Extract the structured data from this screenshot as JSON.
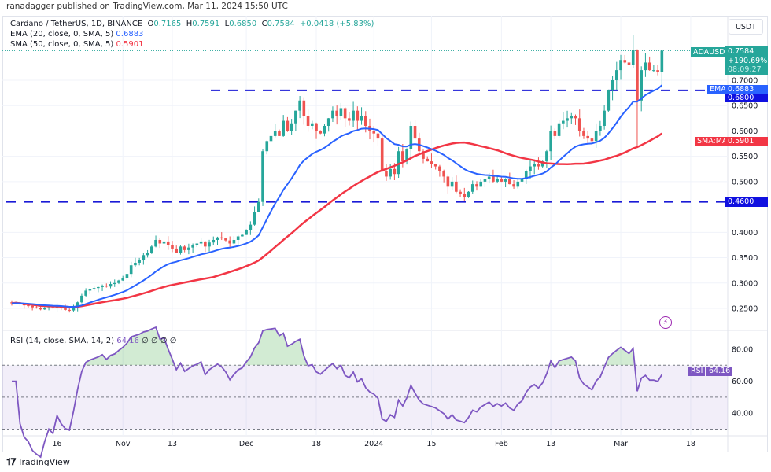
{
  "published": "ranadagger published on TradingView.com, Mar 11, 2024 15:50 UTC",
  "legend": {
    "symbol": "Cardano / TetherUS, 1D, BINANCE",
    "o_label": "O",
    "o": "0.7165",
    "h_label": "H",
    "h": "0.7591",
    "l_label": "L",
    "l": "0.6850",
    "c_label": "C",
    "c": "0.7584",
    "change": "+0.0418 (+5.83%)",
    "ema": "EMA (20, close, 0, SMA, 5)",
    "ema_value": "0.6883",
    "sma": "SMA (50, close, 0, SMA, 5)",
    "sma_value": "0.5901",
    "rsi": "RSI (14, close, SMA, 14, 2)",
    "rsi_value": "64.16",
    "rsi_extra": "∅ ∅ ∅ ∅"
  },
  "currency": "USDT",
  "badges": {
    "symbol": "ADAUSDT",
    "price": "0.7584",
    "pct": "+190.69%",
    "countdown": "08:09:27",
    "ema_label": "EMA",
    "ema_value": "0.6883",
    "level_high": "0.6800",
    "sma_label": "SMA:MA",
    "sma_value": "0.5901",
    "level_low": "0.4600",
    "rsi_label": "RSI",
    "rsi_value": "64.16"
  },
  "footer": {
    "brand": "TradingView"
  },
  "colors": {
    "up": "#26a69a",
    "down": "#ef5350",
    "ema": "#2962ff",
    "sma": "#f23645",
    "rsi": "#7e57c2",
    "levels": "#1a1ad6"
  },
  "icons": {
    "lightning": "lightning-icon",
    "logo": "tradingview-logo-icon"
  },
  "chart_data": {
    "type": "candlestick",
    "x_range": [
      "2023-10-05",
      "2024-03-11"
    ],
    "x_ticks": [
      {
        "label": "16",
        "date": "2023-10-16"
      },
      {
        "label": "Nov",
        "date": "2023-11-01"
      },
      {
        "label": "13",
        "date": "2023-11-13"
      },
      {
        "label": "Dec",
        "date": "2023-12-01"
      },
      {
        "label": "18",
        "date": "2023-12-18"
      },
      {
        "label": "2024",
        "date": "2024-01-01"
      },
      {
        "label": "15",
        "date": "2024-01-15"
      },
      {
        "label": "Feb",
        "date": "2024-02-01"
      },
      {
        "label": "13",
        "date": "2024-02-13"
      },
      {
        "label": "Mar",
        "date": "2024-03-01"
      },
      {
        "label": "18",
        "date": "2024-03-18"
      }
    ],
    "y_ticks": [
      "0.7000",
      "0.6500",
      "0.6000",
      "0.5500",
      "0.5000",
      "0.4000",
      "0.3500",
      "0.3000",
      "0.2500"
    ],
    "ylim": [
      0.22,
      0.8
    ],
    "horizontal_levels": [
      0.68,
      0.46
    ],
    "last": {
      "open": 0.7165,
      "high": 0.7591,
      "low": 0.685,
      "close": 0.7584
    },
    "closes": [
      0.26,
      0.262,
      0.258,
      0.256,
      0.255,
      0.252,
      0.25,
      0.248,
      0.25,
      0.252,
      0.25,
      0.254,
      0.25,
      0.247,
      0.246,
      0.252,
      0.262,
      0.275,
      0.285,
      0.288,
      0.29,
      0.292,
      0.295,
      0.293,
      0.298,
      0.3,
      0.305,
      0.31,
      0.318,
      0.335,
      0.34,
      0.345,
      0.355,
      0.36,
      0.372,
      0.385,
      0.378,
      0.382,
      0.375,
      0.368,
      0.36,
      0.372,
      0.365,
      0.37,
      0.375,
      0.378,
      0.382,
      0.372,
      0.38,
      0.385,
      0.39,
      0.388,
      0.384,
      0.378,
      0.385,
      0.392,
      0.395,
      0.405,
      0.415,
      0.44,
      0.46,
      0.56,
      0.58,
      0.59,
      0.6,
      0.59,
      0.62,
      0.6,
      0.615,
      0.64,
      0.66,
      0.63,
      0.61,
      0.615,
      0.6,
      0.595,
      0.61,
      0.625,
      0.64,
      0.63,
      0.645,
      0.625,
      0.62,
      0.64,
      0.62,
      0.63,
      0.61,
      0.6,
      0.595,
      0.585,
      0.52,
      0.51,
      0.525,
      0.515,
      0.56,
      0.54,
      0.565,
      0.61,
      0.585,
      0.56,
      0.545,
      0.54,
      0.535,
      0.53,
      0.52,
      0.51,
      0.49,
      0.5,
      0.48,
      0.475,
      0.47,
      0.48,
      0.495,
      0.49,
      0.5,
      0.505,
      0.51,
      0.5,
      0.505,
      0.5,
      0.505,
      0.495,
      0.49,
      0.5,
      0.505,
      0.52,
      0.53,
      0.535,
      0.53,
      0.54,
      0.56,
      0.6,
      0.59,
      0.615,
      0.62,
      0.625,
      0.63,
      0.625,
      0.6,
      0.59,
      0.585,
      0.58,
      0.6,
      0.61,
      0.64,
      0.68,
      0.7,
      0.72,
      0.74,
      0.735,
      0.73,
      0.76,
      0.66,
      0.72,
      0.735,
      0.72,
      0.72,
      0.7165,
      0.7584
    ],
    "rsi_ticks": [
      "80.00",
      "60.00",
      "40.00"
    ],
    "rsi_bands": [
      70,
      50,
      30
    ]
  }
}
